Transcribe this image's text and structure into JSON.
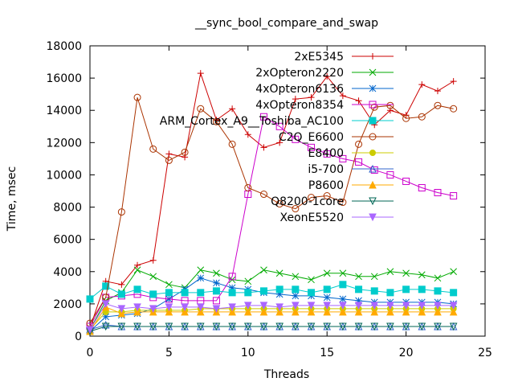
{
  "chart_data": {
    "type": "line",
    "title": "__sync_bool_compare_and_swap",
    "xlabel": "Threads",
    "ylabel": "Time, msec",
    "xlim": [
      0,
      25
    ],
    "ylim": [
      0,
      18000
    ],
    "xticks": [
      0,
      5,
      10,
      15,
      20,
      25
    ],
    "yticks": [
      0,
      2000,
      4000,
      6000,
      8000,
      10000,
      12000,
      14000,
      16000,
      18000
    ],
    "legend_position": "top-right",
    "series": [
      {
        "name": "2xE5345",
        "color": "#cc0000",
        "marker": "plus",
        "x": [
          0,
          1,
          2,
          3,
          4,
          5,
          6,
          7,
          8,
          9,
          10,
          11,
          12,
          13,
          14,
          15,
          16,
          17,
          18,
          19,
          20,
          21,
          22,
          23
        ],
        "values": [
          500,
          3400,
          3200,
          4400,
          4700,
          11300,
          11100,
          16300,
          13400,
          14100,
          12500,
          11700,
          12000,
          14700,
          14800,
          16100,
          14900,
          14600,
          13100,
          14000,
          13700,
          15600,
          15200,
          15800
        ]
      },
      {
        "name": "2xOpteron2220",
        "color": "#00aa00",
        "marker": "x",
        "x": [
          0,
          1,
          2,
          3,
          4,
          5,
          6,
          7,
          8,
          9,
          10,
          11,
          12,
          13,
          14,
          15,
          16,
          17,
          18,
          19,
          20,
          21,
          22,
          23
        ],
        "values": [
          400,
          2200,
          2700,
          4100,
          3700,
          3200,
          3000,
          4100,
          3900,
          3500,
          3400,
          4100,
          3900,
          3700,
          3500,
          3900,
          3900,
          3700,
          3700,
          4000,
          3900,
          3800,
          3600,
          4000
        ]
      },
      {
        "name": "4xOpteron6136",
        "color": "#0066cc",
        "marker": "star",
        "x": [
          0,
          1,
          2,
          3,
          4,
          5,
          6,
          7,
          8,
          9,
          10,
          11,
          12,
          13,
          14,
          15,
          16,
          17,
          18,
          19,
          20,
          21,
          22,
          23
        ],
        "values": [
          300,
          1200,
          1300,
          1400,
          1700,
          2300,
          2900,
          3600,
          3300,
          3000,
          2900,
          2700,
          2600,
          2500,
          2500,
          2400,
          2300,
          2200,
          2100,
          2100,
          2100,
          2100,
          2100,
          2000
        ]
      },
      {
        "name": "4xOpteron8354",
        "color": "#cc00cc",
        "marker": "square",
        "x": [
          0,
          1,
          2,
          3,
          4,
          5,
          6,
          7,
          8,
          9,
          10,
          11,
          12,
          13,
          14,
          15,
          16,
          17,
          18,
          19,
          20,
          21,
          22,
          23
        ],
        "values": [
          600,
          2400,
          2500,
          2600,
          2400,
          2300,
          2200,
          2200,
          2200,
          3700,
          8800,
          13600,
          13000,
          12200,
          11700,
          11300,
          11000,
          10800,
          10300,
          10000,
          9600,
          9200,
          8900,
          8700
        ]
      },
      {
        "name": "ARM_Cortex_A9__Toshiba_AC100",
        "color": "#00cccc",
        "marker": "filled-square",
        "x": [
          0,
          1,
          2,
          3,
          4,
          5,
          6,
          7,
          8,
          9,
          10,
          11,
          12,
          13,
          14,
          15,
          16,
          17,
          18,
          19,
          20,
          21,
          22,
          23
        ],
        "values": [
          2300,
          3100,
          2600,
          2900,
          2600,
          2700,
          2700,
          2700,
          2800,
          2700,
          2700,
          2800,
          2900,
          2900,
          2700,
          2900,
          3200,
          2900,
          2800,
          2700,
          2900,
          2900,
          2800,
          2700
        ]
      },
      {
        "name": "C2Q_E6600",
        "color": "#aa3300",
        "marker": "circle",
        "x": [
          0,
          1,
          2,
          3,
          4,
          5,
          6,
          7,
          8,
          9,
          10,
          11,
          12,
          13,
          14,
          15,
          16,
          17,
          18,
          19,
          20,
          21,
          22,
          23
        ],
        "values": [
          800,
          2400,
          7700,
          14800,
          11600,
          10900,
          11400,
          14100,
          13300,
          11900,
          9200,
          8800,
          8200,
          7900,
          8600,
          8700,
          8300,
          11900,
          14200,
          14300,
          13500,
          13600,
          14300,
          14100
        ]
      },
      {
        "name": "E8400",
        "color": "#cccc00",
        "marker": "filled-circle",
        "x": [
          0,
          1,
          2,
          3,
          4,
          5,
          6,
          7,
          8,
          9,
          10,
          11,
          12,
          13,
          14,
          15,
          16,
          17,
          18,
          19,
          20,
          21,
          22,
          23
        ],
        "values": [
          400,
          1500,
          1500,
          1600,
          1600,
          1600,
          1600,
          1700,
          1700,
          1700,
          1700,
          1700,
          1700,
          1700,
          1700,
          1700,
          1700,
          1700,
          1700,
          1700,
          1700,
          1700,
          1700,
          1700
        ]
      },
      {
        "name": "i5-700",
        "color": "#3366cc",
        "marker": "triangle",
        "x": [
          0,
          1,
          2,
          3,
          4,
          5,
          6,
          7,
          8,
          9,
          10,
          11,
          12,
          13,
          14,
          15,
          16,
          17,
          18,
          19,
          20,
          21,
          22,
          23
        ],
        "values": [
          400,
          700,
          600,
          600,
          600,
          600,
          600,
          600,
          600,
          600,
          600,
          600,
          600,
          600,
          600,
          600,
          600,
          600,
          600,
          600,
          600,
          600,
          600,
          600
        ]
      },
      {
        "name": "P8600",
        "color": "#ffaa00",
        "marker": "filled-triangle",
        "x": [
          0,
          1,
          2,
          3,
          4,
          5,
          6,
          7,
          8,
          9,
          10,
          11,
          12,
          13,
          14,
          15,
          16,
          17,
          18,
          19,
          20,
          21,
          22,
          23
        ],
        "values": [
          300,
          1800,
          1400,
          1500,
          1500,
          1500,
          1500,
          1500,
          1500,
          1500,
          1500,
          1500,
          1500,
          1500,
          1500,
          1500,
          1500,
          1500,
          1500,
          1500,
          1500,
          1500,
          1500,
          1500
        ]
      },
      {
        "name": "Q8200-1core",
        "color": "#006655",
        "marker": "down-triangle",
        "x": [
          0,
          1,
          2,
          3,
          4,
          5,
          6,
          7,
          8,
          9,
          10,
          11,
          12,
          13,
          14,
          15,
          16,
          17,
          18,
          19,
          20,
          21,
          22,
          23
        ],
        "values": [
          300,
          600,
          600,
          600,
          600,
          600,
          600,
          600,
          600,
          600,
          600,
          600,
          600,
          600,
          600,
          600,
          600,
          600,
          600,
          600,
          600,
          600,
          600,
          600
        ]
      },
      {
        "name": "XeonE5520",
        "color": "#aa66ff",
        "marker": "filled-down-triangle",
        "x": [
          0,
          1,
          2,
          3,
          4,
          5,
          6,
          7,
          8,
          9,
          10,
          11,
          12,
          13,
          14,
          15,
          16,
          17,
          18,
          19,
          20,
          21,
          22,
          23
        ],
        "values": [
          400,
          2000,
          1700,
          1800,
          1700,
          1800,
          1800,
          1800,
          1700,
          1800,
          1900,
          1900,
          1800,
          1900,
          1900,
          1900,
          1900,
          1900,
          1900,
          1900,
          1900,
          1900,
          1900,
          1900
        ]
      }
    ]
  }
}
